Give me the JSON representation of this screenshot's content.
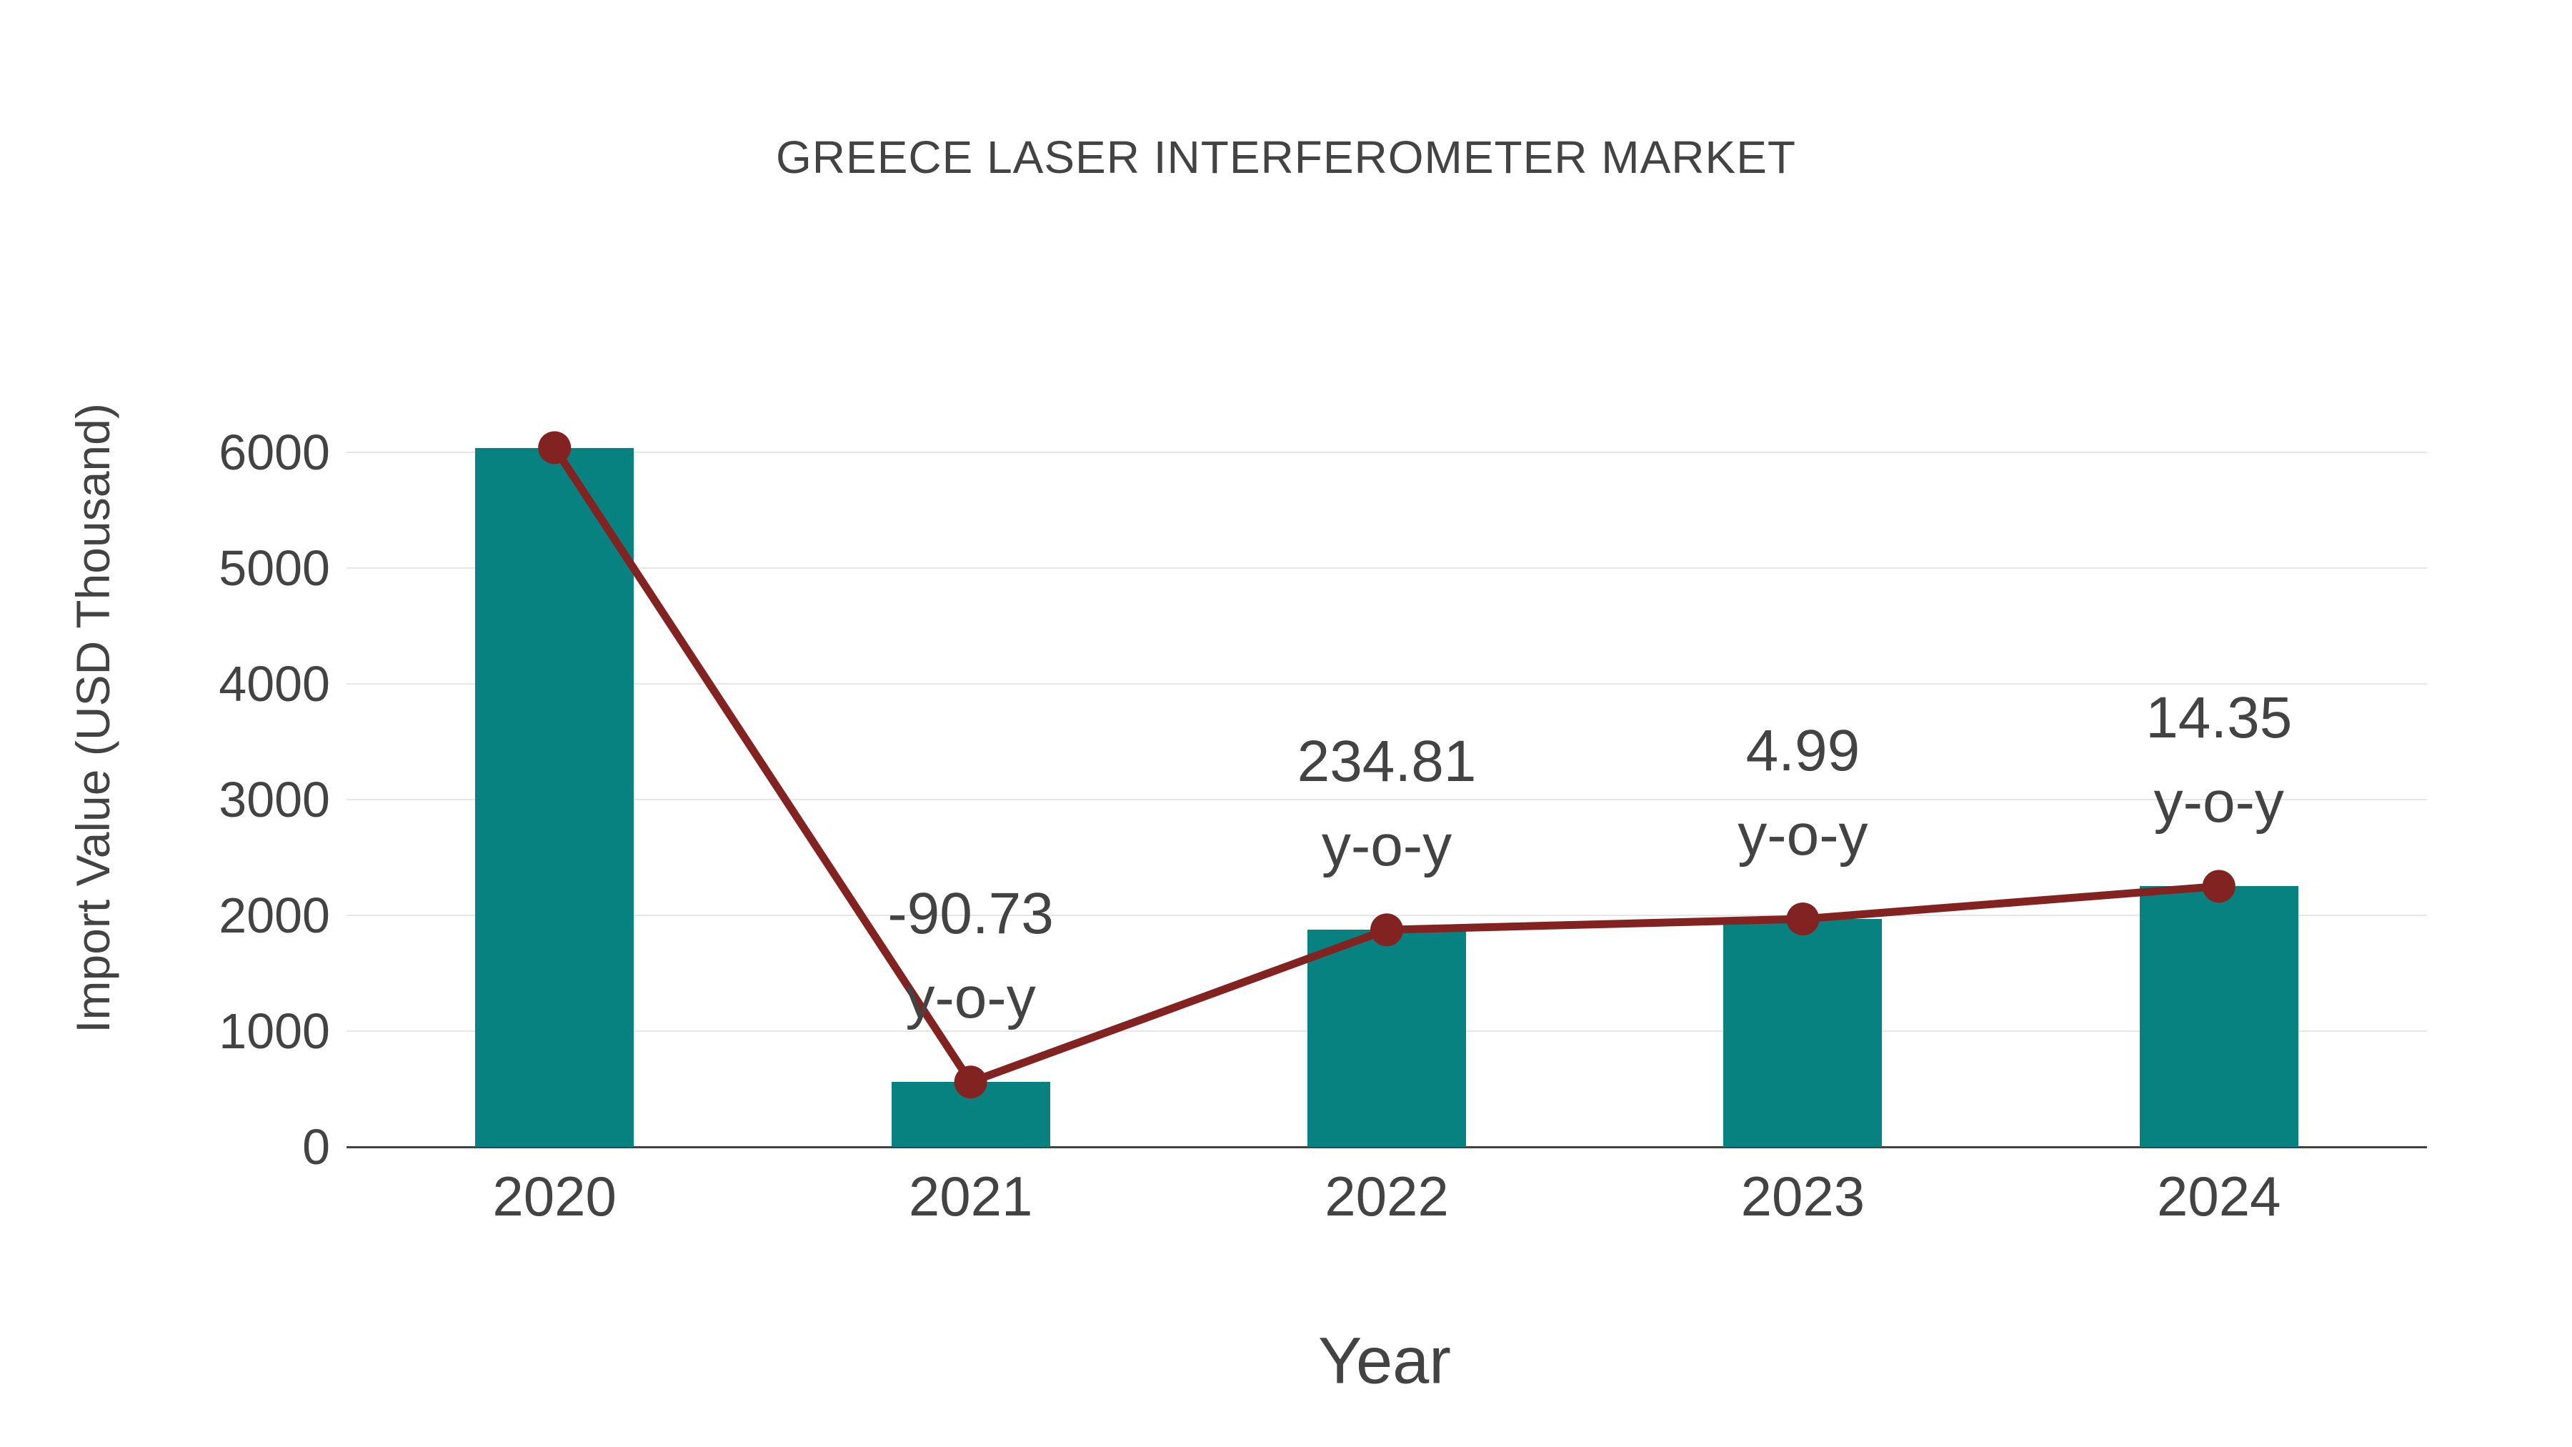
{
  "chart": {
    "title": "GREECE LASER INTERFEROMETER MARKET",
    "xlabel": "Year",
    "ylabel": "Import Value (USD Thousand)"
  },
  "chart_data": {
    "type": "bar",
    "title": "GREECE LASER INTERFEROMETER MARKET",
    "xlabel": "Year",
    "ylabel": "Import Value (USD Thousand)",
    "categories": [
      "2020",
      "2021",
      "2022",
      "2023",
      "2024"
    ],
    "series": [
      {
        "name": "Import Value bars",
        "type": "bar",
        "color": "#088280",
        "values": [
          6040,
          560,
          1875,
          1969,
          2251
        ]
      },
      {
        "name": "Import Value trend line",
        "type": "line",
        "color": "#822322",
        "marker_color": "#822322",
        "values": [
          6040,
          560,
          1875,
          1969,
          2251
        ]
      }
    ],
    "annotations": [
      {
        "category": "2021",
        "value_line": "-90.73",
        "label_line": "y-o-y"
      },
      {
        "category": "2022",
        "value_line": "234.81",
        "label_line": "y-o-y"
      },
      {
        "category": "2023",
        "value_line": "4.99",
        "label_line": "y-o-y"
      },
      {
        "category": "2024",
        "value_line": "14.35",
        "label_line": "y-o-y"
      }
    ],
    "yticks": [
      0,
      1000,
      2000,
      3000,
      4000,
      5000,
      6000
    ],
    "ylim": [
      0,
      6500
    ],
    "grid": true,
    "legend_position": "none",
    "background_color": "#ffffff",
    "text_color": "#434343",
    "gridline_color": "#e6e6e6",
    "axis_line_color": "#424242"
  }
}
